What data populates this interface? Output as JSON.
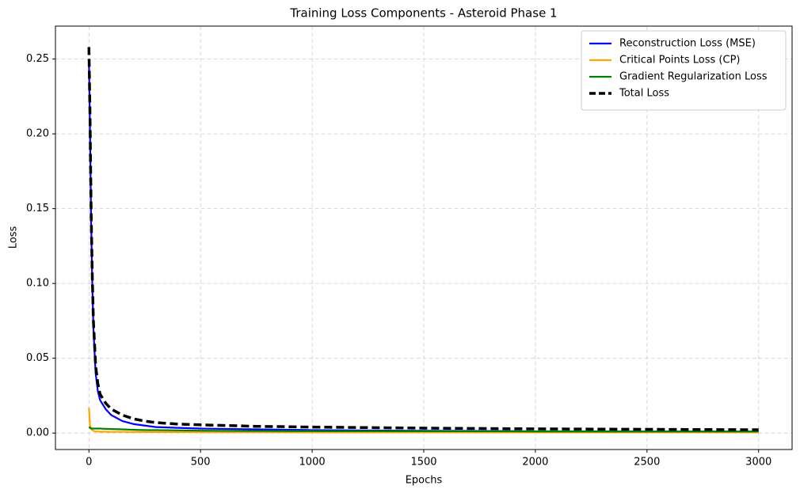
{
  "chart_data": {
    "type": "line",
    "title": "Training Loss Components - Asteroid Phase 1",
    "x_label": "Epochs",
    "y_label": "Loss",
    "x": [
      0,
      5,
      10,
      15,
      20,
      30,
      40,
      50,
      75,
      100,
      150,
      200,
      250,
      300,
      400,
      500,
      750,
      1000,
      1500,
      2000,
      2500,
      3000
    ],
    "series": [
      {
        "name": "Reconstruction Loss (MSE)",
        "color": "#0000ff",
        "linestyle": "solid",
        "values": [
          0.25,
          0.2,
          0.14,
          0.1,
          0.07,
          0.04,
          0.028,
          0.022,
          0.016,
          0.012,
          0.008,
          0.006,
          0.005,
          0.004,
          0.0035,
          0.003,
          0.0025,
          0.002,
          0.0015,
          0.0012,
          0.001,
          0.001
        ]
      },
      {
        "name": "Critical Points Loss (CP)",
        "color": "#ffa500",
        "linestyle": "solid",
        "values": [
          0.017,
          0.005,
          0.003,
          0.002,
          0.0015,
          0.001,
          0.001,
          0.0009,
          0.0009,
          0.0008,
          0.0008,
          0.0007,
          0.0007,
          0.0007,
          0.0006,
          0.0006,
          0.0006,
          0.0005,
          0.0005,
          0.0005,
          0.0005,
          0.0005
        ]
      },
      {
        "name": "Gradient Regularization Loss",
        "color": "#008000",
        "linestyle": "solid",
        "values": [
          0.004,
          0.0035,
          0.003,
          0.003,
          0.003,
          0.003,
          0.003,
          0.003,
          0.0028,
          0.0027,
          0.0025,
          0.0022,
          0.002,
          0.002,
          0.0018,
          0.0016,
          0.0014,
          0.0013,
          0.0012,
          0.0011,
          0.001,
          0.001
        ]
      },
      {
        "name": "Total Loss",
        "color": "#000000",
        "linestyle": "dashed",
        "values": [
          0.258,
          0.21,
          0.146,
          0.105,
          0.075,
          0.045,
          0.033,
          0.026,
          0.02,
          0.016,
          0.012,
          0.0095,
          0.008,
          0.007,
          0.006,
          0.0055,
          0.0045,
          0.004,
          0.0033,
          0.0028,
          0.0025,
          0.0022
        ]
      }
    ],
    "xlim": [
      -150,
      3150
    ],
    "xticks": [
      0,
      500,
      1000,
      1500,
      2000,
      2500,
      3000
    ],
    "ylim": [
      -0.011,
      0.272
    ],
    "yticks": [
      {
        "value": 0,
        "label": "0.00"
      },
      0.05,
      {
        "value": 0.1,
        "label": "0.10"
      },
      0.15,
      {
        "value": 0.2,
        "label": "0.20"
      },
      0.25
    ],
    "grid": true,
    "legend": "upper right"
  }
}
